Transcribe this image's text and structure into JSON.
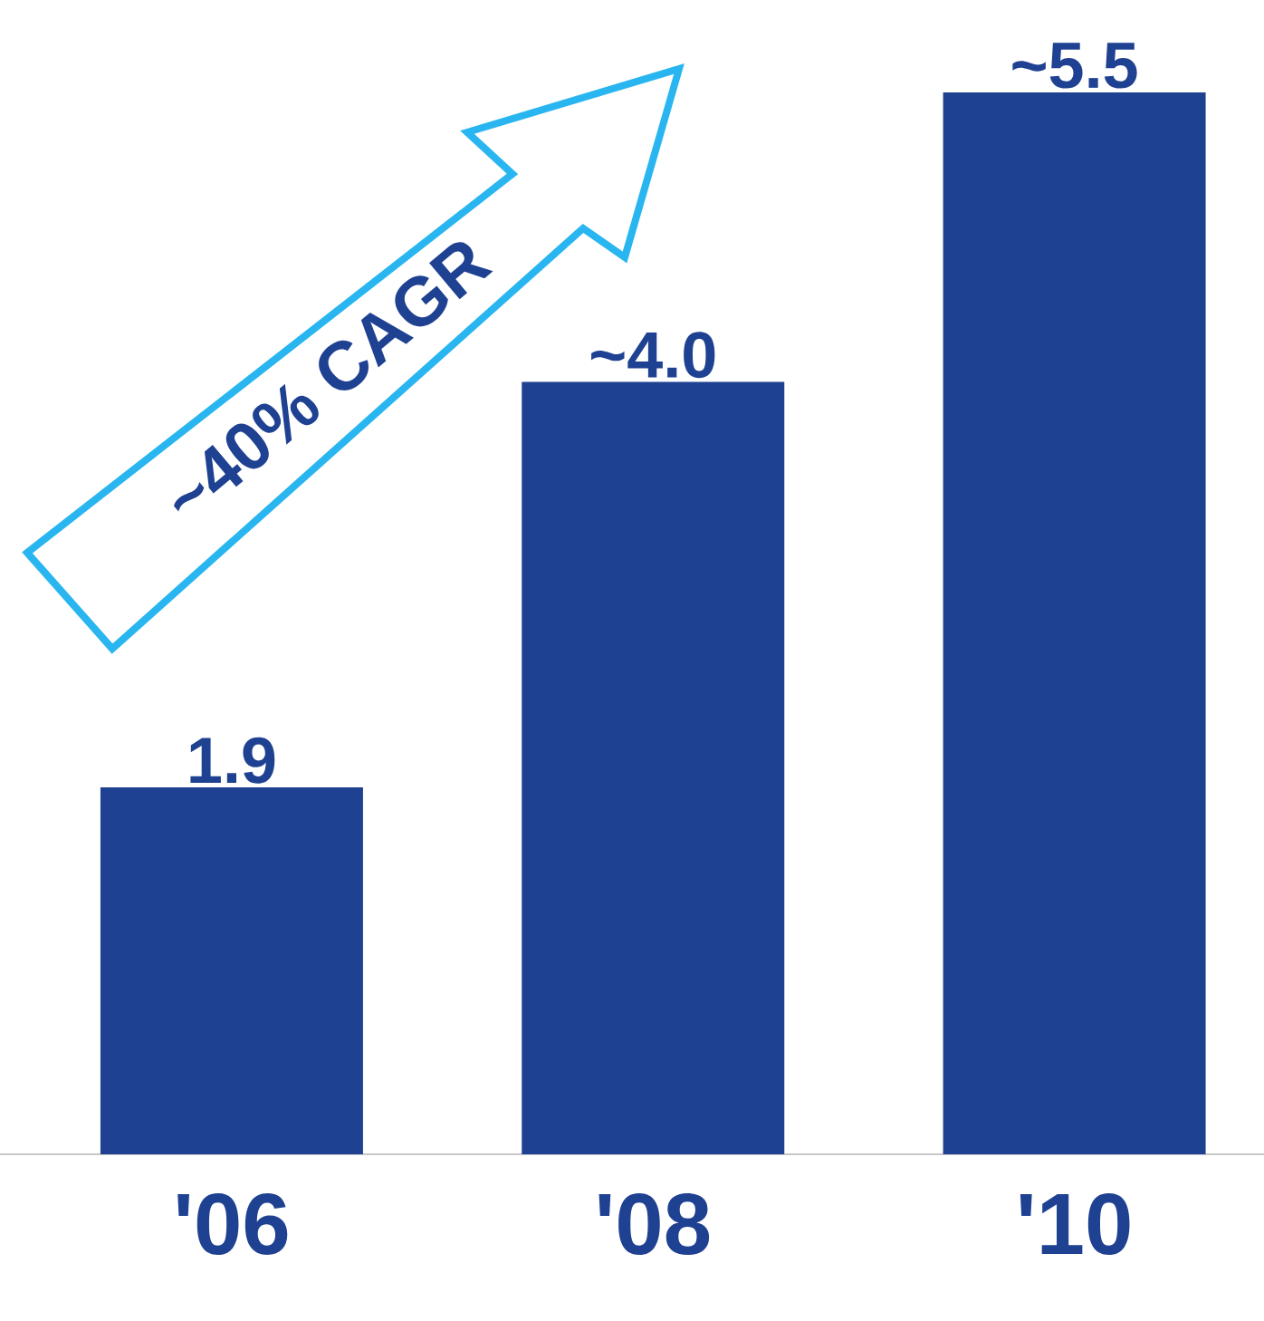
{
  "chart_data": {
    "type": "bar",
    "categories": [
      "'06",
      "'08",
      "'10"
    ],
    "values": [
      1.9,
      4.0,
      5.5
    ],
    "value_labels": [
      "1.9",
      "~4.0",
      "~5.5"
    ],
    "color": "#1f4192",
    "annotations": [
      "~40% CAGR"
    ]
  }
}
